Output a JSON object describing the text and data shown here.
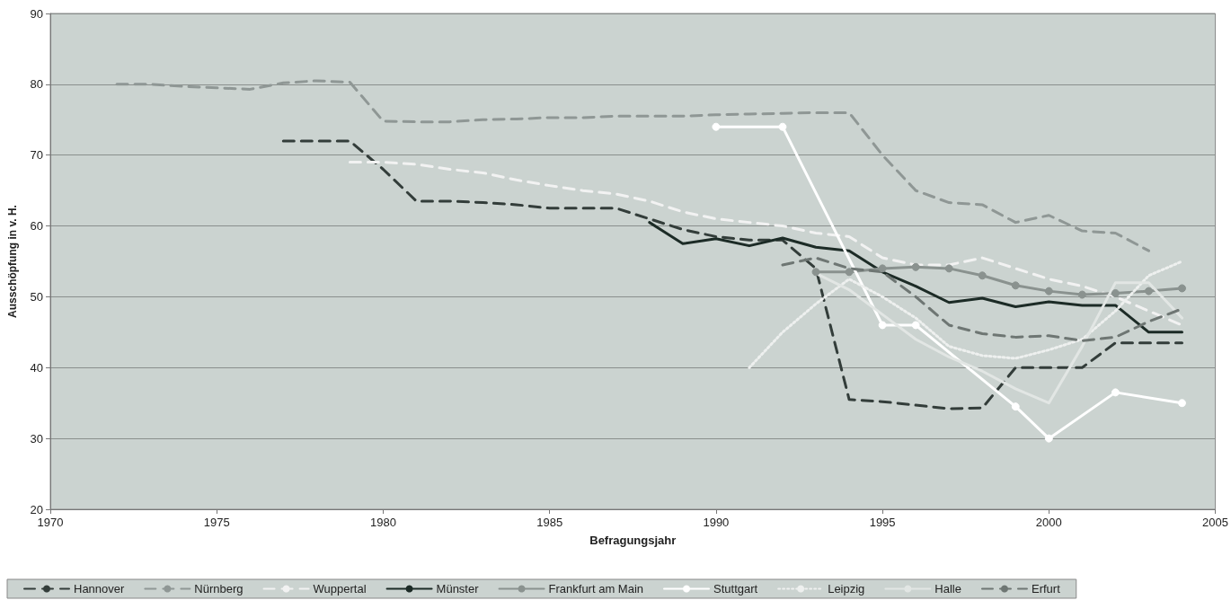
{
  "chart_data": {
    "type": "line",
    "xlabel": "Befragungsjahr",
    "ylabel": "Ausschöpfung in v. H.",
    "xlim": [
      1970,
      2005
    ],
    "xticks": [
      1970,
      1975,
      1980,
      1985,
      1990,
      1995,
      2000,
      2005
    ],
    "ylim": [
      20,
      90
    ],
    "yticks": [
      20,
      30,
      40,
      50,
      60,
      70,
      80,
      90
    ],
    "grid": "y",
    "legend": "bottom",
    "marker": "none",
    "series": [
      {
        "name": "Hannover",
        "color": "#333d3a",
        "line_style": "dashed",
        "x": [
          1977,
          1978,
          1979,
          1980,
          1981,
          1982,
          1983,
          1984,
          1985,
          1986,
          1987,
          1988,
          1989,
          1990,
          1991,
          1992,
          1993,
          1994,
          1995,
          1996,
          1997,
          1998,
          1999,
          2000,
          2001,
          2002,
          2003,
          2004
        ],
        "values": [
          72,
          72,
          72,
          68,
          63.5,
          63.5,
          63.3,
          63,
          62.5,
          62.5,
          62.5,
          61,
          59.5,
          58.5,
          58,
          58,
          54,
          35.5,
          35.2,
          34.7,
          34.2,
          34.3,
          40,
          40,
          40,
          43.5,
          43.5,
          43.5
        ]
      },
      {
        "name": "Nürnberg",
        "color": "#8f9795",
        "line_style": "dashed",
        "x": [
          1972,
          1973,
          1974,
          1975,
          1976,
          1977,
          1978,
          1979,
          1980,
          1981,
          1982,
          1983,
          1984,
          1985,
          1986,
          1987,
          1988,
          1989,
          1990,
          1991,
          1992,
          1993,
          1994,
          1995,
          1996,
          1997,
          1998,
          1999,
          2000,
          2001,
          2002,
          2003
        ],
        "values": [
          80,
          80,
          79.7,
          79.5,
          79.3,
          80.2,
          80.5,
          80.3,
          74.8,
          74.7,
          74.7,
          75,
          75.1,
          75.3,
          75.3,
          75.5,
          75.5,
          75.5,
          75.7,
          75.8,
          75.9,
          76,
          76,
          70,
          65,
          63.3,
          63,
          60.5,
          61.5,
          59.3,
          59,
          56.5
        ]
      },
      {
        "name": "Wuppertal",
        "color": "#f2f2f2",
        "line_style": "dashed",
        "x": [
          1979,
          1980,
          1981,
          1982,
          1983,
          1984,
          1985,
          1986,
          1987,
          1988,
          1989,
          1990,
          1991,
          1992,
          1993,
          1994,
          1995,
          1996,
          1997,
          1998,
          1999,
          2000,
          2001,
          2002,
          2003,
          2004
        ],
        "values": [
          69,
          69,
          68.7,
          68,
          67.5,
          66.5,
          65.7,
          65,
          64.5,
          63.5,
          62,
          61,
          60.5,
          60,
          59,
          58.5,
          55.5,
          54.5,
          54.5,
          55.5,
          54,
          52.5,
          51.5,
          50,
          48,
          46
        ]
      },
      {
        "name": "Münster",
        "color": "#1c2b26",
        "line_style": "solid",
        "x": [
          1988,
          1989,
          1990,
          1991,
          1992,
          1993,
          1994,
          1995,
          1996,
          1997,
          1998,
          1999,
          2000,
          2001,
          2002,
          2003,
          2004
        ],
        "values": [
          60.5,
          57.5,
          58.2,
          57.2,
          58.3,
          57,
          56.5,
          53.5,
          51.5,
          49.2,
          49.8,
          48.6,
          49.3,
          48.8,
          48.8,
          45,
          45
        ]
      },
      {
        "name": "Frankfurt am Main",
        "color": "#8a928f",
        "line_style": "solid",
        "marker": "circle",
        "x": [
          1993,
          1994,
          1995,
          1996,
          1997,
          1998,
          1999,
          2000,
          2001,
          2002,
          2003,
          2004
        ],
        "values": [
          53.5,
          53.5,
          54,
          54.2,
          54,
          53,
          51.6,
          50.8,
          50.3,
          50.5,
          50.8,
          51.2
        ]
      },
      {
        "name": "Stuttgart",
        "color": "#ffffff",
        "line_style": "solid",
        "marker": "circle",
        "x": [
          1990,
          1992,
          1995,
          1996,
          1999,
          2000,
          2002,
          2004
        ],
        "values": [
          74,
          74,
          46,
          46,
          34.5,
          30,
          36.5,
          35
        ]
      },
      {
        "name": "Leipzig",
        "color": "#eef0ef",
        "line_style": "dotted",
        "x": [
          1991,
          1992,
          1993,
          1994,
          1995,
          1996,
          1997,
          1998,
          1999,
          2000,
          2001,
          2002,
          2003,
          2004
        ],
        "values": [
          40,
          45,
          49,
          52.5,
          50,
          47,
          43,
          41.7,
          41.3,
          42.5,
          44,
          48,
          53,
          55
        ]
      },
      {
        "name": "Halle",
        "color": "#e2e6e4",
        "line_style": "solid",
        "x": [
          1993,
          1994,
          1995,
          1996,
          1997,
          1998,
          1999,
          2000,
          2001,
          2002,
          2003,
          2004
        ],
        "values": [
          53.3,
          51,
          47.5,
          44,
          41.5,
          39.5,
          37,
          35,
          43,
          52,
          52,
          47
        ]
      },
      {
        "name": "Erfurt",
        "color": "#6e7673",
        "line_style": "dashed",
        "x": [
          1992,
          1993,
          1994,
          1995,
          1996,
          1997,
          1998,
          1999,
          2000,
          2001,
          2002,
          2003,
          2004
        ],
        "values": [
          54.5,
          55.5,
          54,
          53.5,
          50,
          46,
          44.8,
          44.3,
          44.5,
          43.8,
          44.3,
          46.5,
          48.3
        ]
      }
    ]
  }
}
